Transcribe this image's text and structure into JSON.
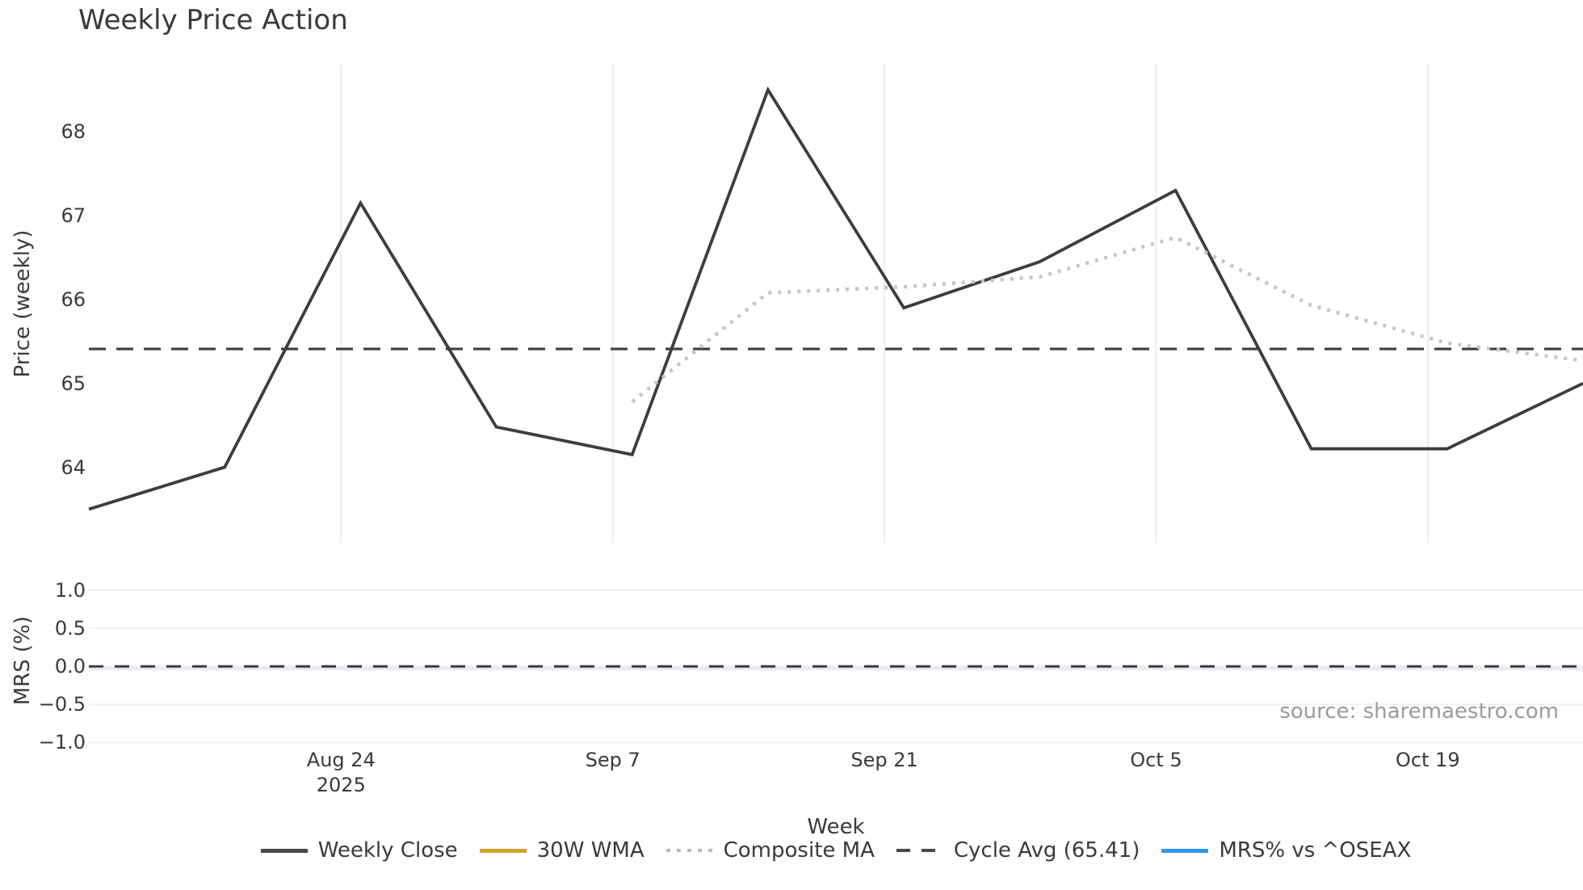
{
  "source": "source: sharemaestro.com",
  "chart_data": {
    "type": "line",
    "title": "Weekly Price Action",
    "xlabel": "Week",
    "xlim": [
      0,
      11
    ],
    "x_unit": "week index (weekly data points)",
    "xticks": [
      {
        "pos": 1.857,
        "label": "Aug 24",
        "sublabel": "2025"
      },
      {
        "pos": 3.857,
        "label": "Sep 7"
      },
      {
        "pos": 5.857,
        "label": "Sep 21"
      },
      {
        "pos": 7.857,
        "label": "Oct 5"
      },
      {
        "pos": 9.857,
        "label": "Oct 19"
      }
    ],
    "panels": [
      {
        "ylabel": "Price (weekly)",
        "ylim": [
          63.1,
          68.8
        ],
        "grid": "vertical-only",
        "yticks": [
          {
            "v": 64,
            "label": "64"
          },
          {
            "v": 65,
            "label": "65"
          },
          {
            "v": 66,
            "label": "66"
          },
          {
            "v": 67,
            "label": "67"
          },
          {
            "v": 68,
            "label": "68"
          }
        ],
        "hline": {
          "value": 65.41,
          "style": "dashed",
          "color": "#3f3f3f"
        },
        "series": [
          {
            "name": "Weekly Close",
            "style": "solid",
            "color": "#3d3d3d",
            "width": 3.8,
            "x": [
              0,
              1,
              2,
              3,
              4,
              5,
              6,
              7,
              8,
              9,
              10,
              11
            ],
            "values": [
              63.5,
              64.0,
              67.15,
              64.48,
              64.15,
              68.5,
              65.9,
              66.45,
              67.3,
              64.22,
              64.22,
              65.0
            ]
          },
          {
            "name": "30W WMA",
            "style": "solid",
            "color": "#d2a42e",
            "width": 4.5,
            "x": [],
            "values": []
          },
          {
            "name": "Composite MA",
            "style": "dotted",
            "color": "#c6c6c6",
            "width": 4.5,
            "x": [
              4,
              5,
              6,
              7,
              8,
              9,
              10,
              11
            ],
            "values": [
              64.78,
              66.08,
              66.15,
              66.27,
              66.74,
              65.93,
              65.48,
              65.27
            ]
          }
        ]
      },
      {
        "ylabel": "MRS (%)",
        "ylim": [
          -1.06,
          1.2
        ],
        "grid": "horizontal-only",
        "yticks": [
          {
            "v": 1.0,
            "label": "1.0"
          },
          {
            "v": 0.5,
            "label": "0.5"
          },
          {
            "v": 0.0,
            "label": "0.0"
          },
          {
            "v": -0.5,
            "label": "−0.5"
          },
          {
            "v": -1.0,
            "label": "−1.0"
          }
        ],
        "hline": {
          "value": 0.0,
          "style": "dashed",
          "color": "#3a3a3a"
        },
        "series": [
          {
            "name": "MRS% vs ^OSEAX",
            "style": "solid",
            "color": "#3296f0",
            "flat_value": 0.0,
            "rendered_color": "#e8ebf3"
          }
        ]
      }
    ],
    "legend": [
      {
        "label": "Weekly Close",
        "style": "solid",
        "color": "#4a4a4a"
      },
      {
        "label": "30W WMA",
        "style": "solid",
        "color": "#d2a42e"
      },
      {
        "label": "Composite MA",
        "style": "dotted",
        "color": "#b9b9b9"
      },
      {
        "label": "Cycle Avg (65.41)",
        "style": "dashed",
        "color": "#4a4a4a"
      },
      {
        "label": "MRS% vs ^OSEAX",
        "style": "solid",
        "color": "#3296f0"
      }
    ]
  }
}
